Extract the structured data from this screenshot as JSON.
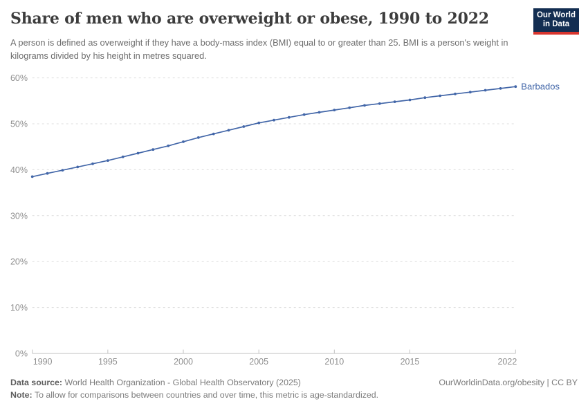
{
  "header": {
    "title": "Share of men who are overweight or obese, 1990 to 2022",
    "subtitle": "A person is defined as overweight if they have a body-mass index (BMI) equal to or greater than 25. BMI is a person's weight in kilograms divided by his height in metres squared.",
    "logo": {
      "line1": "Our World",
      "line2": "in Data",
      "bg_color": "#132e52",
      "accent_color": "#d8352e"
    }
  },
  "chart_data": {
    "type": "line",
    "title": "Share of men who are overweight or obese, 1990 to 2022",
    "x": [
      1990,
      1991,
      1992,
      1993,
      1994,
      1995,
      1996,
      1997,
      1998,
      1999,
      2000,
      2001,
      2002,
      2003,
      2004,
      2005,
      2006,
      2007,
      2008,
      2009,
      2010,
      2011,
      2012,
      2013,
      2014,
      2015,
      2016,
      2017,
      2018,
      2019,
      2020,
      2021,
      2022
    ],
    "series": [
      {
        "name": "Barbados",
        "color": "#4266a8",
        "values": [
          38.5,
          39.2,
          39.9,
          40.6,
          41.3,
          42.0,
          42.8,
          43.6,
          44.4,
          45.2,
          46.1,
          47.0,
          47.8,
          48.6,
          49.4,
          50.2,
          50.8,
          51.4,
          52.0,
          52.5,
          53.0,
          53.5,
          54.0,
          54.4,
          54.8,
          55.2,
          55.7,
          56.1,
          56.5,
          56.9,
          57.3,
          57.7,
          58.1
        ]
      }
    ],
    "xlabel": "",
    "ylabel": "",
    "ylim": [
      0,
      60
    ],
    "yticks": [
      0,
      10,
      20,
      30,
      40,
      50,
      60
    ],
    "ytick_suffix": "%",
    "xticks": [
      1990,
      1995,
      2000,
      2005,
      2010,
      2015,
      2022
    ],
    "grid": "horizontal-dashed",
    "legend": "end-of-line-label",
    "colors": {
      "grid": "#dcdcdc",
      "axis": "#c2c2c2",
      "tick_label": "#8f8f8f"
    }
  },
  "footer": {
    "source_label": "Data source:",
    "source_text": " World Health Organization - Global Health Observatory (2025)",
    "rights": "OurWorldinData.org/obesity | CC BY",
    "note_label": "Note:",
    "note_text": " To allow for comparisons between countries and over time, this metric is age-standardized."
  }
}
